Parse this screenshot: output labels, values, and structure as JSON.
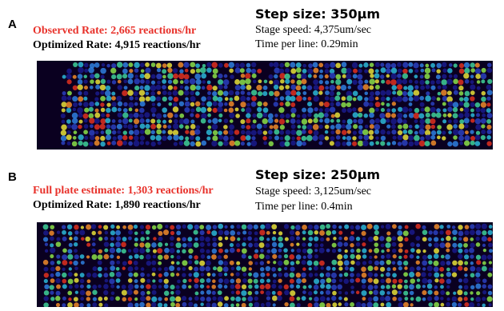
{
  "panels": [
    {
      "letter": "A",
      "rate_1": "Observed Rate: 2,665 reactions/hr",
      "rate_2": "Optimized Rate: 4,915 reactions/hr",
      "step_title": "Step size: 350µm",
      "stage_speed": "Stage speed: 4,375um/sec",
      "time_per_line": "Time per line: 0.29min"
    },
    {
      "letter": "B",
      "rate_1": "Full plate estimate: 1,303 reactions/hr",
      "rate_2": "Optimized Rate: 1,890 reactions/hr",
      "step_title": "Step size: 250µm",
      "stage_speed": "Stage speed: 3,125um/sec",
      "time_per_line": "Time per line: 0.4min"
    }
  ],
  "colors": {
    "highlight_rate": "#e8312a",
    "normal_text": "#000000",
    "heatmap_bg": "#0a0020"
  }
}
